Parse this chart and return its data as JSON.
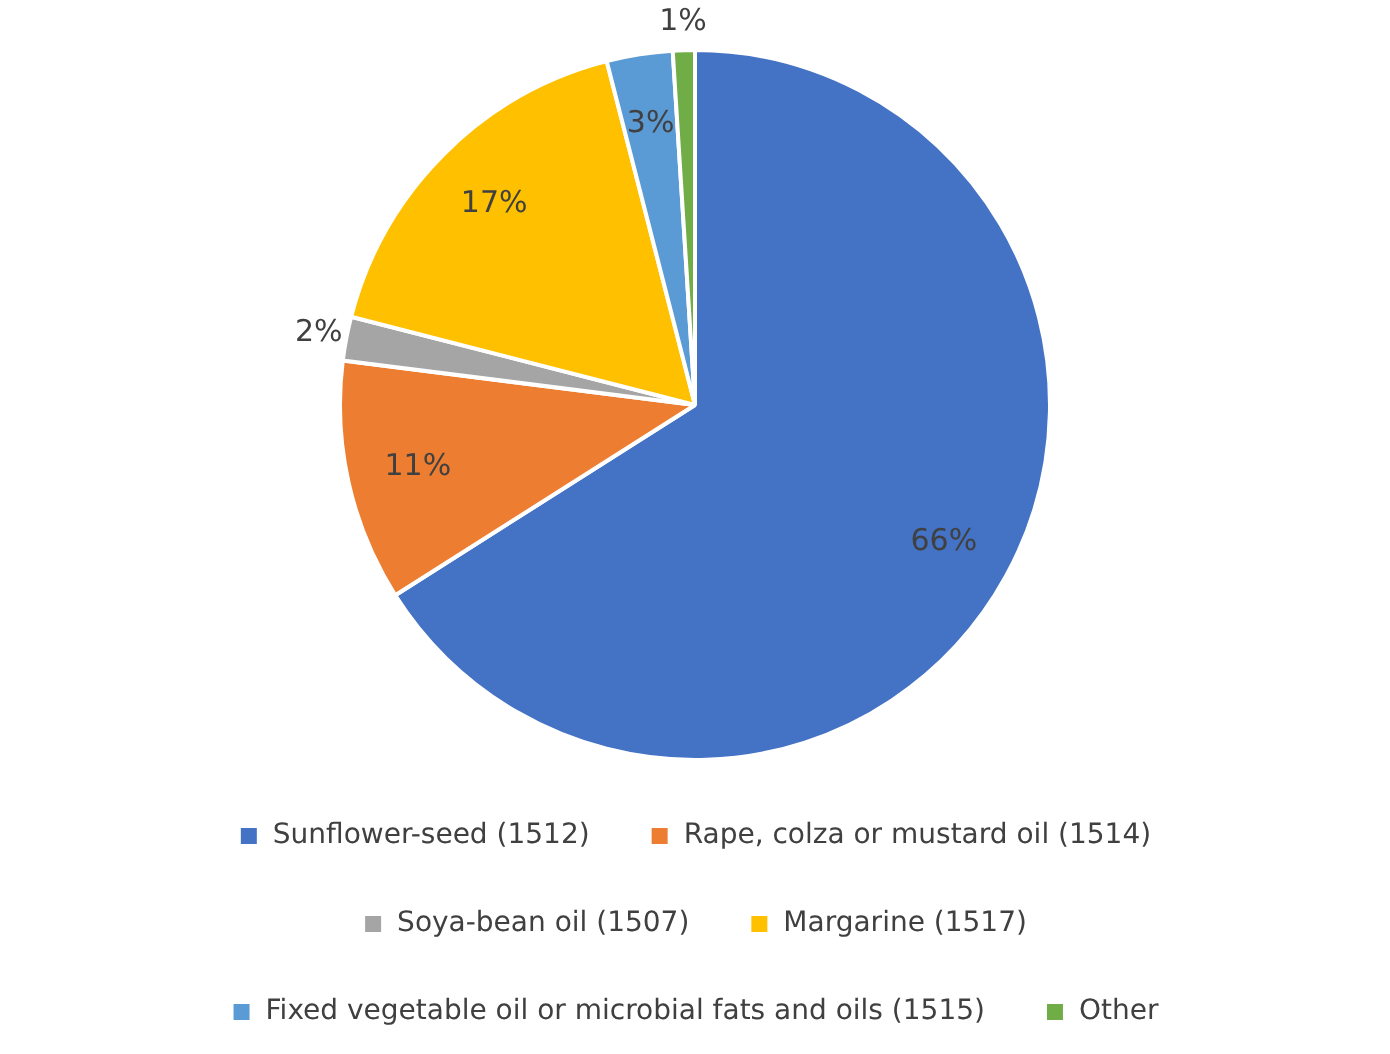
{
  "chart_data": {
    "type": "pie",
    "categories": [
      "Sunflower-seed (1512)",
      "Rape, colza or mustard oil (1514)",
      "Soya-bean oil (1507)",
      "Margarine (1517)",
      "Fixed vegetable oil or microbial fats and oils (1515)",
      "Other"
    ],
    "values": [
      66,
      11,
      2,
      17,
      3,
      1
    ],
    "colors": [
      "#4472c4",
      "#ed7d31",
      "#a5a5a5",
      "#ffc000",
      "#5b9bd5",
      "#70ad47"
    ],
    "value_labels": [
      "66%",
      "11%",
      "2%",
      "17%",
      "3%",
      "1%"
    ],
    "legend": "bottom"
  }
}
